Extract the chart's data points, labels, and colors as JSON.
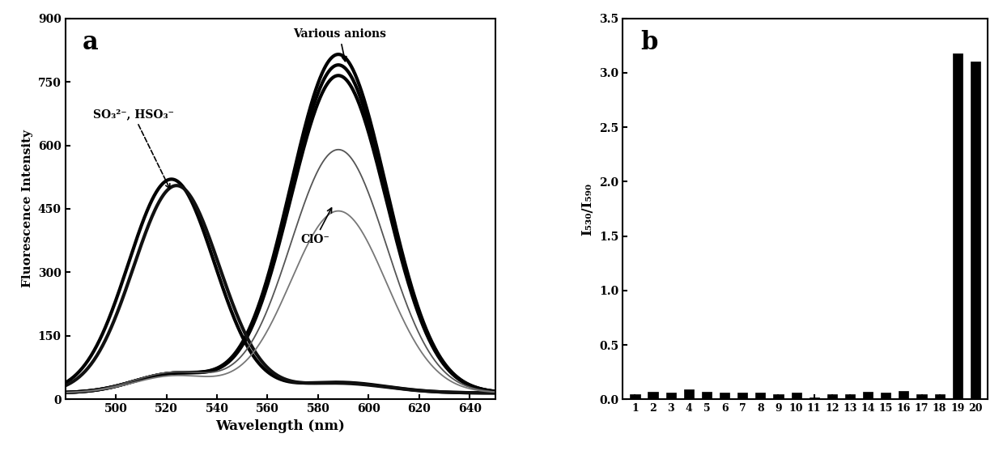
{
  "panel_a": {
    "xlabel": "Wavelength (nm)",
    "ylabel": "Fluorescence Intensity",
    "xlim": [
      480,
      650
    ],
    "ylim": [
      0,
      900
    ],
    "yticks": [
      0,
      150,
      300,
      450,
      600,
      750,
      900
    ],
    "xticks": [
      500,
      520,
      540,
      560,
      580,
      600,
      620,
      640
    ],
    "label": "a",
    "annotation_so3": "SO₃²⁻, HSO₃⁻",
    "annotation_anions": "Various anions",
    "annotation_clo": "ClO⁻"
  },
  "panel_b": {
    "ylabel": "I₅₃₀/I₅₉₀",
    "ylim": [
      0,
      3.5
    ],
    "yticks": [
      0.0,
      0.5,
      1.0,
      1.5,
      2.0,
      2.5,
      3.0,
      3.5
    ],
    "bar_values": [
      0.05,
      0.07,
      0.06,
      0.09,
      0.07,
      0.06,
      0.06,
      0.06,
      0.05,
      0.06,
      0.02,
      0.05,
      0.05,
      0.07,
      0.06,
      0.08,
      0.05,
      0.05,
      3.18,
      3.1
    ],
    "bar_color": "#000000",
    "label": "b"
  },
  "background_color": "#ffffff"
}
